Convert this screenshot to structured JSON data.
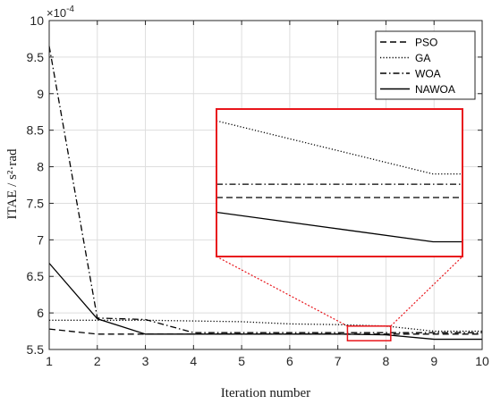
{
  "chart_data": {
    "type": "line",
    "title": "",
    "xlabel": "Iteration number",
    "ylabel": "ITAE / s²·rad",
    "y_multiplier": "×10",
    "y_exponent": "-4",
    "xlim": [
      1,
      10
    ],
    "ylim": [
      5.5,
      10
    ],
    "x_ticks": [
      "1",
      "2",
      "3",
      "4",
      "5",
      "6",
      "7",
      "8",
      "9",
      "10"
    ],
    "y_ticks": [
      "5.5",
      "6",
      "6.5",
      "7",
      "7.5",
      "8",
      "8.5",
      "9",
      "9.5",
      "10"
    ],
    "grid": true,
    "legend_position": "top-right",
    "x": [
      1,
      2,
      3,
      4,
      5,
      6,
      7,
      8,
      9,
      10
    ],
    "series": [
      {
        "name": "PSO",
        "style": "dashed",
        "values": [
          5.78,
          5.71,
          5.71,
          5.71,
          5.71,
          5.71,
          5.71,
          5.71,
          5.71,
          5.71
        ]
      },
      {
        "name": "GA",
        "style": "dotted",
        "values": [
          5.9,
          5.9,
          5.9,
          5.89,
          5.88,
          5.85,
          5.84,
          5.82,
          5.75,
          5.75
        ]
      },
      {
        "name": "WOA",
        "style": "dashdot",
        "values": [
          9.65,
          5.93,
          5.91,
          5.73,
          5.73,
          5.73,
          5.73,
          5.73,
          5.73,
          5.73
        ]
      },
      {
        "name": "NAWOA",
        "style": "solid",
        "values": [
          6.68,
          5.92,
          5.71,
          5.71,
          5.71,
          5.71,
          5.71,
          5.7,
          5.64,
          5.64
        ]
      }
    ],
    "zoom_box": {
      "xlim": [
        7.2,
        8.1
      ],
      "ylim": [
        5.62,
        5.82
      ],
      "color": "#e8151b"
    },
    "inset": {
      "series": [
        {
          "name": "PSO",
          "style": "dashed",
          "values": [
            0.4,
            0.4
          ]
        },
        {
          "name": "GA",
          "style": "dotted",
          "values": [
            0.92,
            0.56
          ]
        },
        {
          "name": "WOA",
          "style": "dashdot",
          "values": [
            0.49,
            0.49
          ]
        },
        {
          "name": "NAWOA",
          "style": "solid",
          "values": [
            0.3,
            0.1
          ]
        }
      ]
    }
  }
}
